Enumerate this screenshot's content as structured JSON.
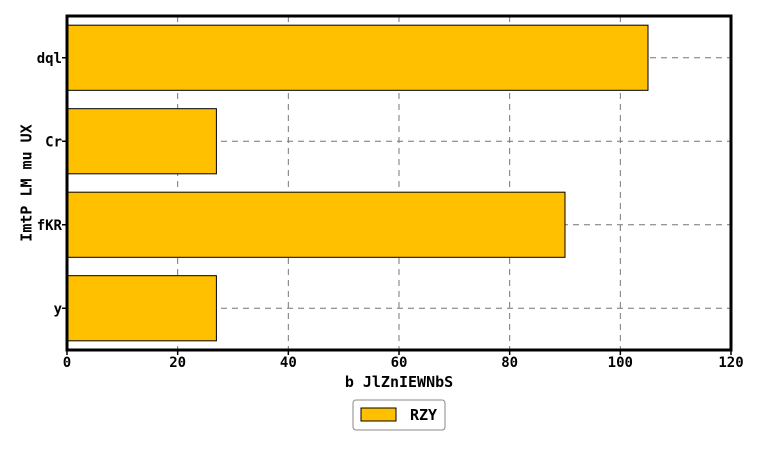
{
  "chart_data": {
    "type": "bar",
    "orientation": "horizontal",
    "categories": [
      "dql",
      "Cr",
      "fKR",
      "y"
    ],
    "series": [
      {
        "name": "RZY",
        "values": [
          105,
          27,
          90,
          27
        ],
        "color": "#ffc000"
      }
    ],
    "xlabel": "b JlZnIEWNbS",
    "ylabel": "ImtP LM mu UX",
    "xlim": [
      0,
      120
    ],
    "xticks": [
      0,
      20,
      40,
      60,
      80,
      100,
      120
    ],
    "grid": true,
    "grid_style": "dashed",
    "legend_position": "bottom-center"
  }
}
